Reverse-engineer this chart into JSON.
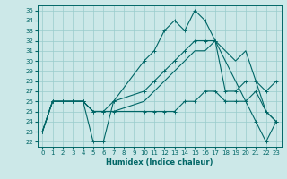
{
  "title": "",
  "xlabel": "Humidex (Indice chaleur)",
  "xlim": [
    -0.5,
    23.5
  ],
  "ylim": [
    21.5,
    35.5
  ],
  "yticks": [
    22,
    23,
    24,
    25,
    26,
    27,
    28,
    29,
    30,
    31,
    32,
    33,
    34,
    35
  ],
  "xticks": [
    0,
    1,
    2,
    3,
    4,
    5,
    6,
    7,
    8,
    9,
    10,
    11,
    12,
    13,
    14,
    15,
    16,
    17,
    18,
    19,
    20,
    21,
    22,
    23
  ],
  "bg_color": "#cce8e8",
  "grid_color": "#99cccc",
  "line_color": "#006666",
  "lines": [
    {
      "x": [
        0,
        1,
        2,
        3,
        4,
        5,
        6,
        7,
        10,
        11,
        12,
        13,
        14,
        15,
        16,
        17,
        21,
        22,
        23
      ],
      "y": [
        23,
        26,
        26,
        26,
        26,
        22,
        22,
        26,
        30,
        31,
        33,
        34,
        33,
        35,
        34,
        32,
        24,
        22,
        24
      ],
      "marker": "+"
    },
    {
      "x": [
        0,
        1,
        2,
        3,
        4,
        5,
        6,
        7,
        10,
        11,
        12,
        13,
        14,
        15,
        16,
        17,
        18,
        19,
        20,
        21,
        22,
        23
      ],
      "y": [
        23,
        26,
        26,
        26,
        26,
        25,
        25,
        26,
        27,
        28,
        29,
        30,
        31,
        32,
        32,
        32,
        27,
        27,
        28,
        28,
        27,
        28
      ],
      "marker": "+"
    },
    {
      "x": [
        0,
        1,
        2,
        3,
        4,
        5,
        6,
        7,
        10,
        11,
        12,
        13,
        14,
        15,
        16,
        17,
        18,
        19,
        20,
        21,
        22,
        23
      ],
      "y": [
        23,
        26,
        26,
        26,
        26,
        25,
        25,
        25,
        25,
        25,
        25,
        25,
        26,
        26,
        27,
        27,
        26,
        26,
        26,
        27,
        25,
        24
      ],
      "marker": "+"
    },
    {
      "x": [
        0,
        1,
        2,
        3,
        4,
        5,
        6,
        7,
        10,
        11,
        12,
        13,
        14,
        15,
        16,
        17,
        18,
        19,
        20,
        21,
        22,
        23
      ],
      "y": [
        23,
        26,
        26,
        26,
        26,
        25,
        25,
        25,
        26,
        27,
        28,
        29,
        30,
        31,
        31,
        32,
        31,
        30,
        31,
        28,
        25,
        24
      ],
      "marker": null
    }
  ]
}
